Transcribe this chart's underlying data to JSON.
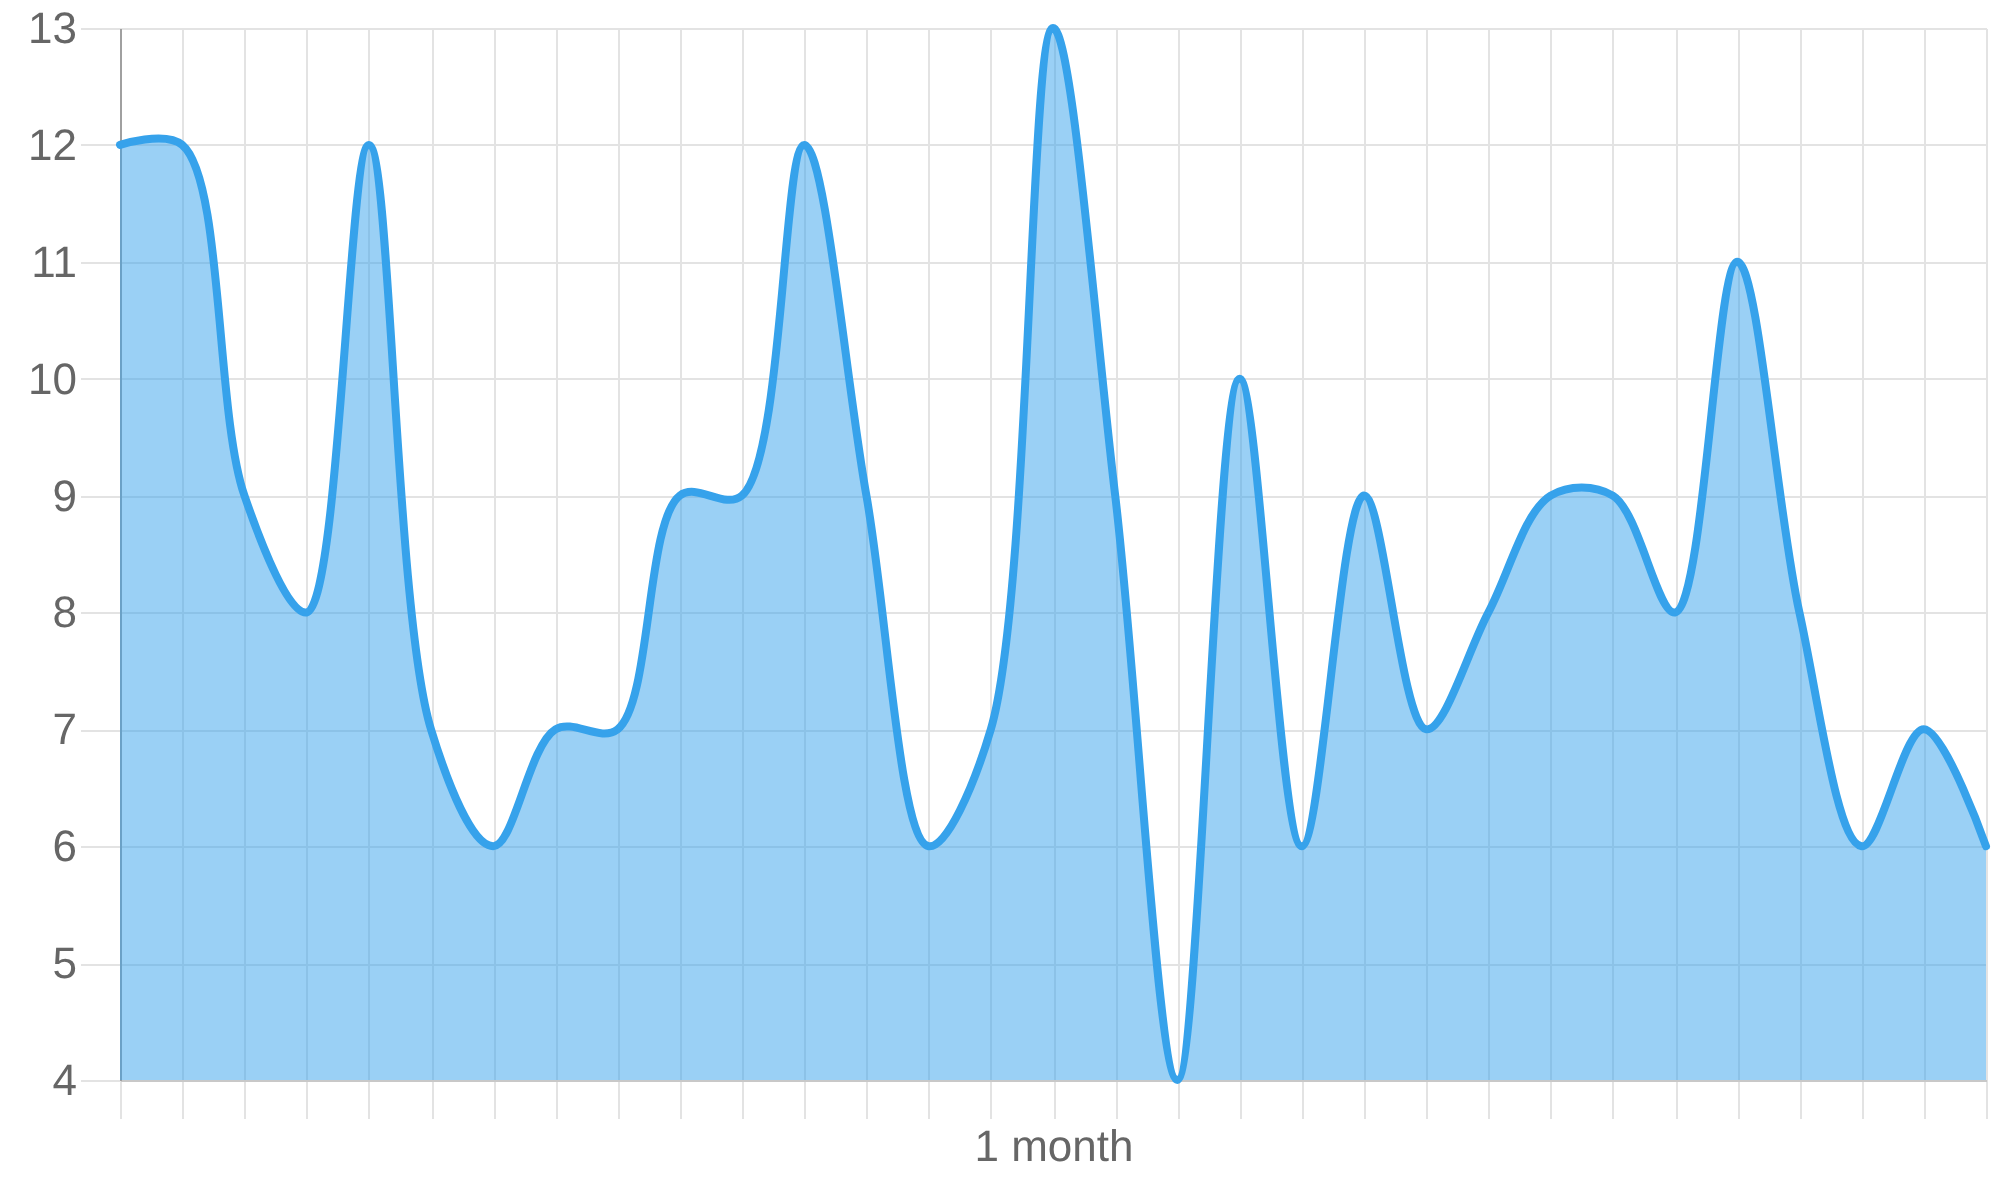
{
  "chart_data": {
    "type": "area",
    "categories": [
      null,
      null,
      null,
      null,
      null,
      null,
      null,
      null,
      null,
      null,
      null,
      null,
      null,
      null,
      null,
      "1 month",
      null,
      null,
      null,
      null,
      null,
      null,
      null,
      null,
      null,
      null,
      null,
      null,
      null,
      null,
      null
    ],
    "series": [
      {
        "color": "#36a2eb",
        "values": [
          12,
          12,
          9,
          8,
          12,
          7,
          6,
          7,
          7,
          9,
          9,
          12,
          9,
          6,
          7,
          13,
          9,
          4,
          10,
          6,
          9,
          7,
          8,
          9,
          9,
          8,
          11,
          8,
          6,
          7,
          6
        ]
      }
    ],
    "ylim": [
      4,
      13
    ],
    "yticks": [
      4,
      5,
      6,
      7,
      8,
      9,
      10,
      11,
      12,
      13
    ],
    "grid": true
  }
}
